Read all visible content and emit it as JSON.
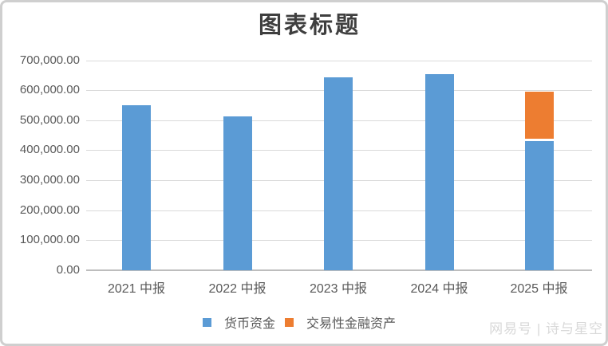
{
  "chart_data": {
    "type": "bar",
    "stacked": true,
    "title": "图表标题",
    "categories": [
      "2021 中报",
      "2022 中报",
      "2023 中报",
      "2024 中报",
      "2025 中报"
    ],
    "series": [
      {
        "name": "货币资金",
        "color": "#5B9BD5",
        "values": [
          550000,
          513000,
          643000,
          653000,
          430000
        ]
      },
      {
        "name": "交易性金融资产",
        "color": "#ED7D31",
        "values": [
          0,
          0,
          0,
          0,
          165000
        ]
      }
    ],
    "xlabel": "",
    "ylabel": "",
    "ylim": [
      0,
      700000
    ],
    "y_tick_interval": 100000,
    "y_tick_labels": [
      "0.00",
      "100,000.00",
      "200,000.00",
      "300,000.00",
      "400,000.00",
      "500,000.00",
      "600,000.00",
      "700,000.00"
    ],
    "grid": true,
    "legend_position": "bottom"
  },
  "watermark": "网易号 | 诗与星空",
  "colors": {
    "bar_blue": "#5B9BD5",
    "bar_orange": "#ED7D31",
    "grid": "#DADADA",
    "axis": "#BDBDBD",
    "tick_text": "#595959",
    "title_text": "#3F3F3F",
    "watermark_text": "#D9D9D9",
    "border": "#CFCFCF",
    "background": "#FFFFFF"
  }
}
